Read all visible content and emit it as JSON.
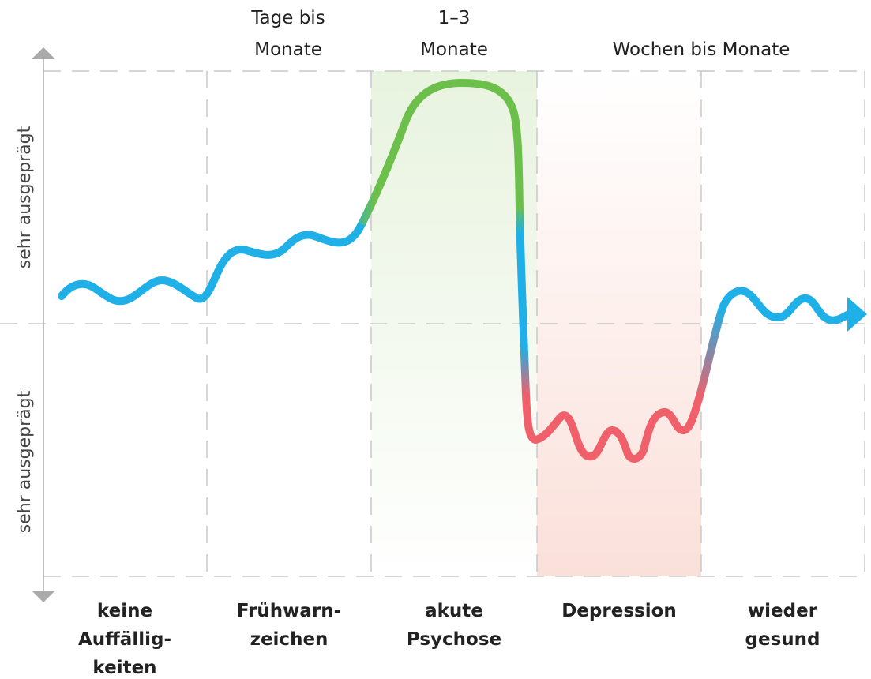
{
  "durations": [
    {
      "lines": [
        "Tage bis",
        "Monate"
      ]
    },
    {
      "lines": [
        "1–3",
        "Monate"
      ]
    },
    {
      "lines": [
        "Wochen bis Monate"
      ]
    }
  ],
  "y_axis": {
    "upper": "sehr ausgeprägt",
    "lower": "sehr ausgeprägt"
  },
  "phases": [
    {
      "lines": [
        "keine",
        "Auffällig-",
        "keiten"
      ]
    },
    {
      "lines": [
        "Frühwarn-",
        "zeichen"
      ]
    },
    {
      "lines": [
        "akute",
        "Psychose"
      ]
    },
    {
      "lines": [
        "Depression"
      ]
    },
    {
      "lines": [
        "wieder",
        "gesund"
      ]
    }
  ]
}
